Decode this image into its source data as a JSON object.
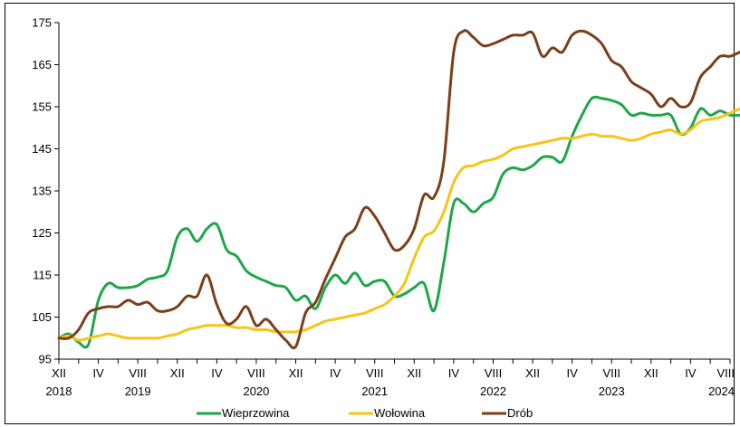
{
  "chart_data": {
    "type": "line",
    "title": "",
    "xlabel": "",
    "ylabel": "",
    "ylim": [
      95,
      175
    ],
    "yticks": [
      "95",
      "105",
      "115",
      "125",
      "135",
      "145",
      "155",
      "165",
      "175"
    ],
    "grid": false,
    "legend_position": "bottom",
    "x_tick_labels": [
      {
        "month": "XII",
        "year": "2018"
      },
      {
        "month": "IV",
        "year": ""
      },
      {
        "month": "VIII",
        "year": "2019"
      },
      {
        "month": "XII",
        "year": ""
      },
      {
        "month": "IV",
        "year": ""
      },
      {
        "month": "VIII",
        "year": "2020"
      },
      {
        "month": "XII",
        "year": ""
      },
      {
        "month": "IV",
        "year": ""
      },
      {
        "month": "VIII",
        "year": "2021"
      },
      {
        "month": "XII",
        "year": ""
      },
      {
        "month": "IV",
        "year": ""
      },
      {
        "month": "VIII",
        "year": "2022"
      },
      {
        "month": "XII",
        "year": ""
      },
      {
        "month": "IV",
        "year": ""
      },
      {
        "month": "VIII",
        "year": "2023"
      },
      {
        "month": "XII",
        "year": ""
      },
      {
        "month": "IV",
        "year": ""
      },
      {
        "month": "VIII",
        "year": "2024"
      }
    ],
    "x_range": [
      "2018-12",
      "2024-08"
    ],
    "series": [
      {
        "name": "Wieprzowina",
        "color": "#1fa64a",
        "points": [
          [
            "2018-12",
            100
          ],
          [
            "2019-01",
            101
          ],
          [
            "2019-02",
            99
          ],
          [
            "2019-03",
            98.5
          ],
          [
            "2019-04",
            109
          ],
          [
            "2019-05",
            113
          ],
          [
            "2019-06",
            112
          ],
          [
            "2019-07",
            112
          ],
          [
            "2019-08",
            112.5
          ],
          [
            "2019-09",
            114
          ],
          [
            "2019-10",
            114.5
          ],
          [
            "2019-11",
            116
          ],
          [
            "2019-12",
            124
          ],
          [
            "2020-01",
            126
          ],
          [
            "2020-02",
            123
          ],
          [
            "2020-03",
            126
          ],
          [
            "2020-04",
            127
          ],
          [
            "2020-05",
            121
          ],
          [
            "2020-06",
            119.5
          ],
          [
            "2020-07",
            116
          ],
          [
            "2020-08",
            114.5
          ],
          [
            "2020-09",
            113.5
          ],
          [
            "2020-10",
            112.5
          ],
          [
            "2020-11",
            112
          ],
          [
            "2020-12",
            109
          ],
          [
            "2021-01",
            110
          ],
          [
            "2021-02",
            107
          ],
          [
            "2021-03",
            112
          ],
          [
            "2021-04",
            115
          ],
          [
            "2021-05",
            113
          ],
          [
            "2021-06",
            115.5
          ],
          [
            "2021-07",
            112.5
          ],
          [
            "2021-08",
            113.5
          ],
          [
            "2021-09",
            113.5
          ],
          [
            "2021-10",
            110
          ],
          [
            "2021-11",
            110.5
          ],
          [
            "2021-12",
            112
          ],
          [
            "2022-01",
            113
          ],
          [
            "2022-02",
            106.5
          ],
          [
            "2022-03",
            118
          ],
          [
            "2022-04",
            132
          ],
          [
            "2022-05",
            132
          ],
          [
            "2022-06",
            130
          ],
          [
            "2022-07",
            132
          ],
          [
            "2022-08",
            133.5
          ],
          [
            "2022-09",
            139
          ],
          [
            "2022-10",
            140.5
          ],
          [
            "2022-11",
            140
          ],
          [
            "2022-12",
            141
          ],
          [
            "2023-01",
            143
          ],
          [
            "2023-02",
            143
          ],
          [
            "2023-03",
            142
          ],
          [
            "2023-04",
            148
          ],
          [
            "2023-05",
            153
          ],
          [
            "2023-06",
            157
          ],
          [
            "2023-07",
            157
          ],
          [
            "2023-08",
            156.5
          ],
          [
            "2023-09",
            155.5
          ],
          [
            "2023-10",
            153
          ],
          [
            "2023-11",
            153.5
          ],
          [
            "2023-12",
            153
          ],
          [
            "2024-01",
            153
          ],
          [
            "2024-02",
            153
          ],
          [
            "2024-03",
            148.5
          ],
          [
            "2024-04",
            150
          ],
          [
            "2024-05",
            154.5
          ],
          [
            "2024-06",
            153
          ],
          [
            "2024-07",
            154
          ],
          [
            "2024-08",
            153
          ],
          [
            "2024-09",
            153
          ]
        ]
      },
      {
        "name": "Wołowina",
        "color": "#f5c518",
        "points": [
          [
            "2018-12",
            100
          ],
          [
            "2019-01",
            100.5
          ],
          [
            "2019-02",
            99.5
          ],
          [
            "2019-03",
            100
          ],
          [
            "2019-04",
            100.5
          ],
          [
            "2019-05",
            101
          ],
          [
            "2019-06",
            100.5
          ],
          [
            "2019-07",
            100
          ],
          [
            "2019-08",
            100
          ],
          [
            "2019-09",
            100
          ],
          [
            "2019-10",
            100
          ],
          [
            "2019-11",
            100.5
          ],
          [
            "2019-12",
            101
          ],
          [
            "2020-01",
            102
          ],
          [
            "2020-02",
            102.5
          ],
          [
            "2020-03",
            103
          ],
          [
            "2020-04",
            103
          ],
          [
            "2020-05",
            103
          ],
          [
            "2020-06",
            102.5
          ],
          [
            "2020-07",
            102.5
          ],
          [
            "2020-08",
            102
          ],
          [
            "2020-09",
            102
          ],
          [
            "2020-10",
            101.5
          ],
          [
            "2020-11",
            101.5
          ],
          [
            "2020-12",
            101.5
          ],
          [
            "2021-01",
            102
          ],
          [
            "2021-02",
            103
          ],
          [
            "2021-03",
            104
          ],
          [
            "2021-04",
            104.5
          ],
          [
            "2021-05",
            105
          ],
          [
            "2021-06",
            105.5
          ],
          [
            "2021-07",
            106
          ],
          [
            "2021-08",
            107
          ],
          [
            "2021-09",
            108
          ],
          [
            "2021-10",
            110
          ],
          [
            "2021-11",
            113
          ],
          [
            "2021-12",
            119
          ],
          [
            "2022-01",
            124
          ],
          [
            "2022-02",
            125.5
          ],
          [
            "2022-03",
            130
          ],
          [
            "2022-04",
            137
          ],
          [
            "2022-05",
            140.5
          ],
          [
            "2022-06",
            141
          ],
          [
            "2022-07",
            142
          ],
          [
            "2022-08",
            142.5
          ],
          [
            "2022-09",
            143.5
          ],
          [
            "2022-10",
            145
          ],
          [
            "2022-11",
            145.5
          ],
          [
            "2022-12",
            146
          ],
          [
            "2023-01",
            146.5
          ],
          [
            "2023-02",
            147
          ],
          [
            "2023-03",
            147.5
          ],
          [
            "2023-04",
            147.5
          ],
          [
            "2023-05",
            148
          ],
          [
            "2023-06",
            148.5
          ],
          [
            "2023-07",
            148
          ],
          [
            "2023-08",
            148
          ],
          [
            "2023-09",
            147.5
          ],
          [
            "2023-10",
            147
          ],
          [
            "2023-11",
            147.5
          ],
          [
            "2023-12",
            148.5
          ],
          [
            "2024-01",
            149
          ],
          [
            "2024-02",
            149.5
          ],
          [
            "2024-03",
            148.5
          ],
          [
            "2024-04",
            149.5
          ],
          [
            "2024-05",
            151.5
          ],
          [
            "2024-06",
            152
          ],
          [
            "2024-07",
            152.5
          ],
          [
            "2024-08",
            153.5
          ],
          [
            "2024-09",
            154.5
          ]
        ]
      },
      {
        "name": "Drób",
        "color": "#7b3f1a",
        "points": [
          [
            "2018-12",
            100
          ],
          [
            "2019-01",
            100
          ],
          [
            "2019-02",
            102
          ],
          [
            "2019-03",
            106
          ],
          [
            "2019-04",
            107
          ],
          [
            "2019-05",
            107.5
          ],
          [
            "2019-06",
            107.5
          ],
          [
            "2019-07",
            109
          ],
          [
            "2019-08",
            108
          ],
          [
            "2019-09",
            108.5
          ],
          [
            "2019-10",
            106.5
          ],
          [
            "2019-11",
            106.5
          ],
          [
            "2019-12",
            107.5
          ],
          [
            "2020-01",
            110
          ],
          [
            "2020-02",
            110
          ],
          [
            "2020-03",
            115
          ],
          [
            "2020-04",
            108
          ],
          [
            "2020-05",
            103.5
          ],
          [
            "2020-06",
            104.5
          ],
          [
            "2020-07",
            107.5
          ],
          [
            "2020-08",
            103
          ],
          [
            "2020-09",
            104.5
          ],
          [
            "2020-10",
            102
          ],
          [
            "2020-11",
            99.5
          ],
          [
            "2020-12",
            98
          ],
          [
            "2021-01",
            106
          ],
          [
            "2021-02",
            108.5
          ],
          [
            "2021-03",
            114
          ],
          [
            "2021-04",
            119
          ],
          [
            "2021-05",
            124
          ],
          [
            "2021-06",
            126
          ],
          [
            "2021-07",
            131
          ],
          [
            "2021-08",
            129
          ],
          [
            "2021-09",
            125
          ],
          [
            "2021-10",
            121
          ],
          [
            "2021-11",
            122
          ],
          [
            "2021-12",
            126
          ],
          [
            "2022-01",
            134
          ],
          [
            "2022-02",
            133.5
          ],
          [
            "2022-03",
            142
          ],
          [
            "2022-04",
            168
          ],
          [
            "2022-05",
            173
          ],
          [
            "2022-06",
            171.5
          ],
          [
            "2022-07",
            169.5
          ],
          [
            "2022-08",
            170
          ],
          [
            "2022-09",
            171
          ],
          [
            "2022-10",
            172
          ],
          [
            "2022-11",
            172
          ],
          [
            "2022-12",
            172.5
          ],
          [
            "2023-01",
            167
          ],
          [
            "2023-02",
            169
          ],
          [
            "2023-03",
            168
          ],
          [
            "2023-04",
            172
          ],
          [
            "2023-05",
            173
          ],
          [
            "2023-06",
            172
          ],
          [
            "2023-07",
            170
          ],
          [
            "2023-08",
            166
          ],
          [
            "2023-09",
            164.5
          ],
          [
            "2023-10",
            161
          ],
          [
            "2023-11",
            159.5
          ],
          [
            "2023-12",
            158
          ],
          [
            "2024-01",
            155
          ],
          [
            "2024-02",
            157
          ],
          [
            "2024-03",
            155
          ],
          [
            "2024-04",
            156
          ],
          [
            "2024-05",
            162
          ],
          [
            "2024-06",
            164.5
          ],
          [
            "2024-07",
            167
          ],
          [
            "2024-08",
            167
          ],
          [
            "2024-09",
            168
          ]
        ]
      }
    ]
  }
}
